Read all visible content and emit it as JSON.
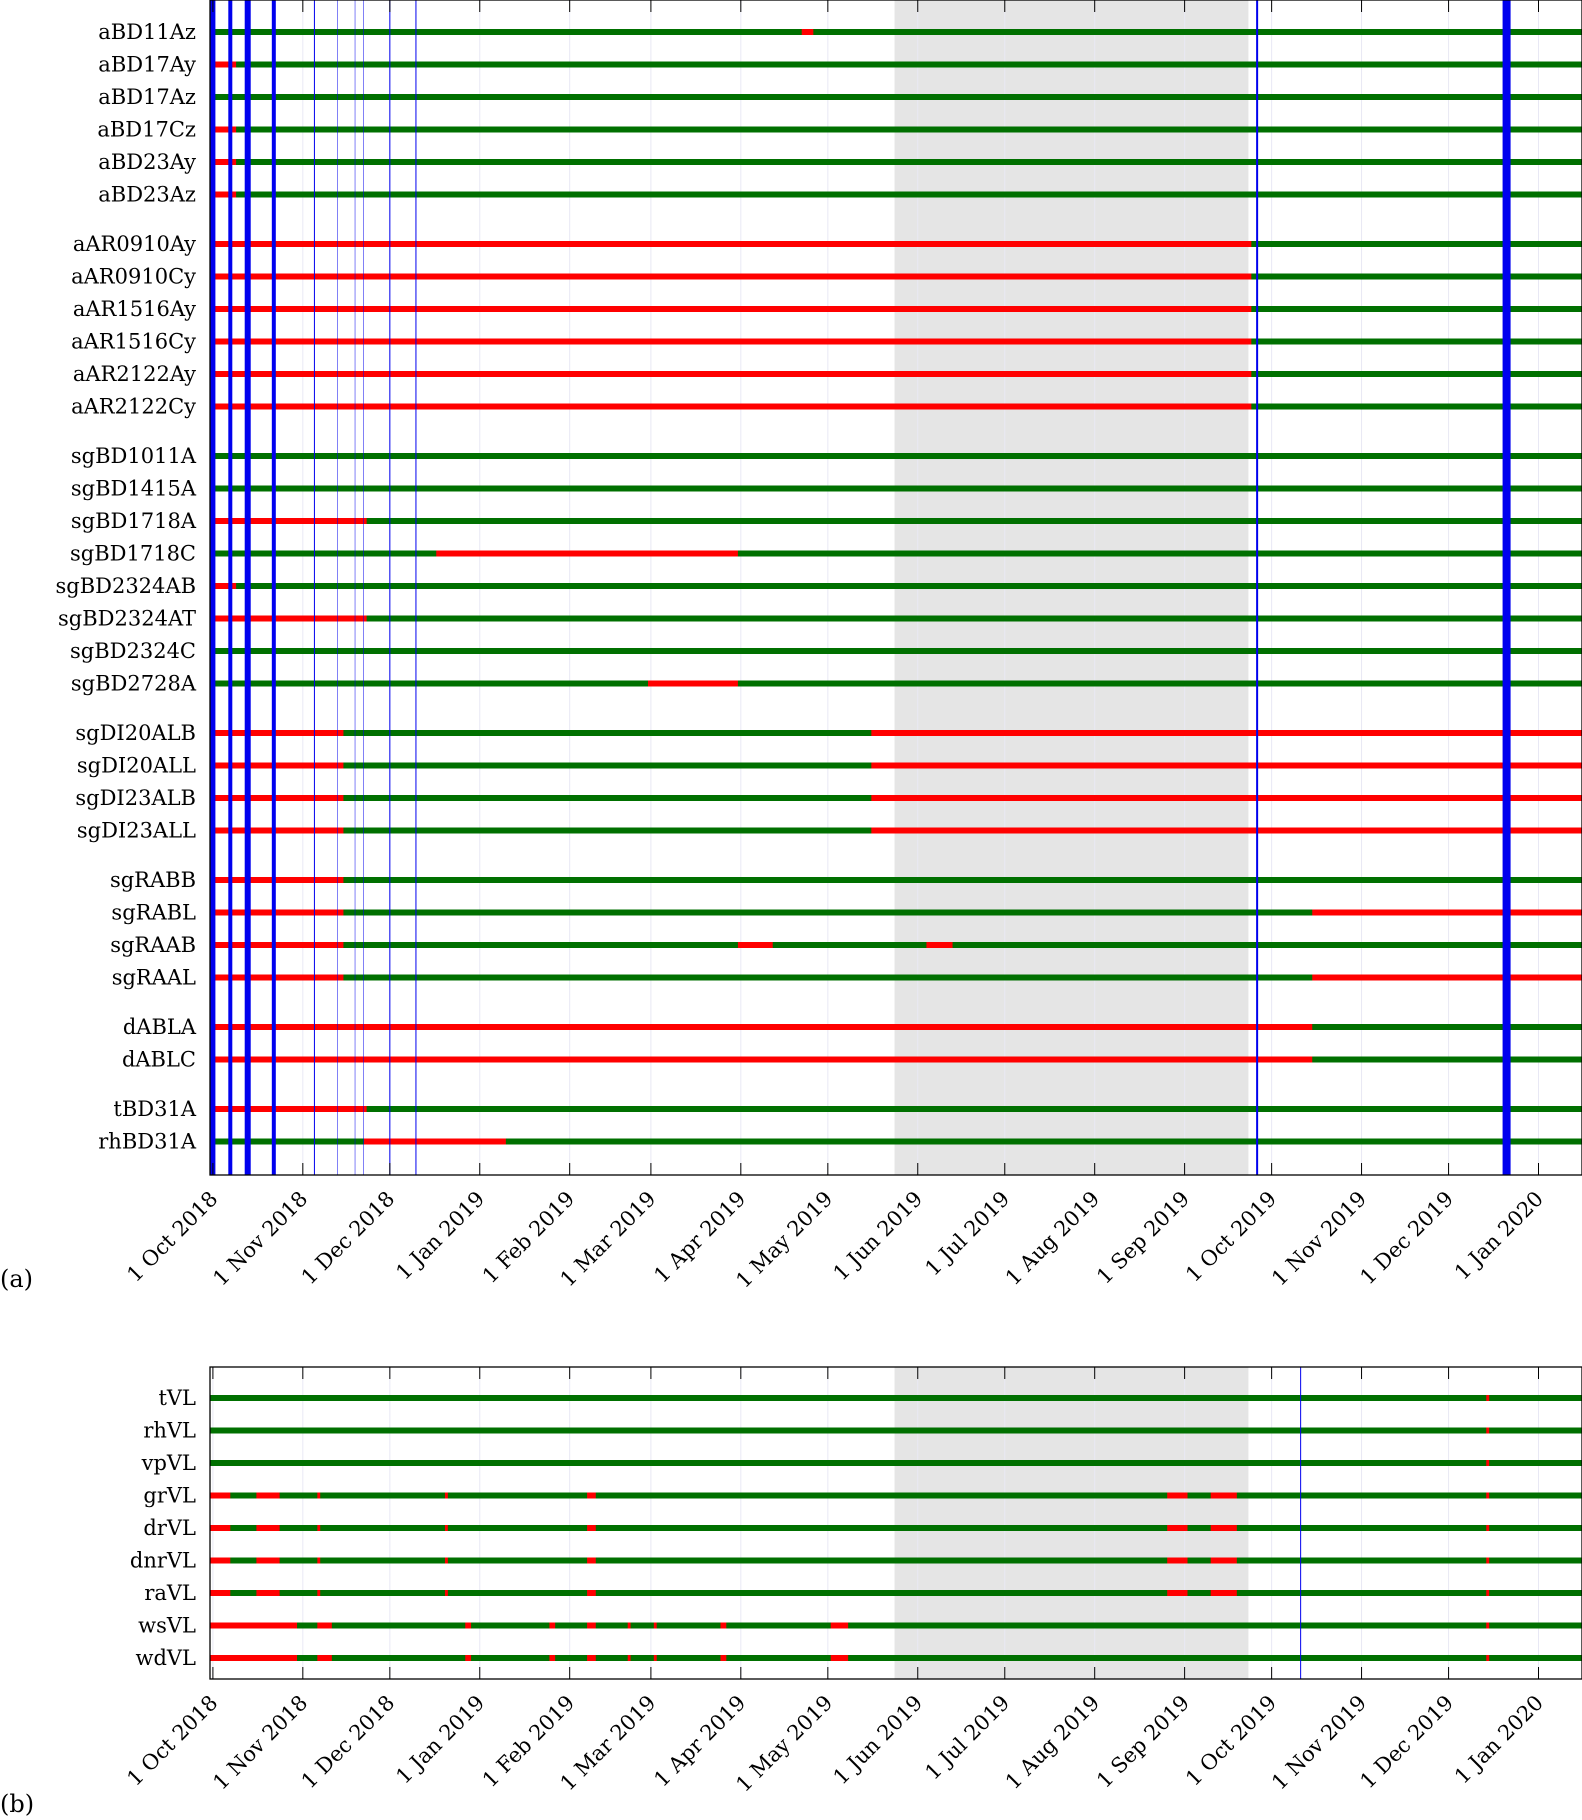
{
  "chart_data": [
    {
      "panel_label": "(a)",
      "type": "status-timeline",
      "xaxis": {
        "start": "2018-09-30",
        "end": "2020-01-16",
        "ticks": [
          "1 Oct 2018",
          "1 Nov 2018",
          "1 Dec 2018",
          "1 Jan 2019",
          "1 Feb 2019",
          "1 Mar 2019",
          "1 Apr 2019",
          "1 May 2019",
          "1 Jun 2019",
          "1 Jul 2019",
          "1 Aug 2019",
          "1 Sep 2019",
          "1 Oct 2019",
          "1 Nov 2019",
          "1 Dec 2019",
          "1 Jan 2020"
        ],
        "tick_dates": [
          "2018-10-01",
          "2018-11-01",
          "2018-12-01",
          "2019-01-01",
          "2019-02-01",
          "2019-03-01",
          "2019-04-01",
          "2019-05-01",
          "2019-06-01",
          "2019-07-01",
          "2019-08-01",
          "2019-09-01",
          "2019-10-01",
          "2019-11-01",
          "2019-12-01",
          "2020-01-01"
        ]
      },
      "shaded_period": {
        "start": "2019-05-24",
        "end": "2019-09-23",
        "color": "#e5e5e5"
      },
      "event_lines": [
        {
          "date": "2018-10-01",
          "weight": 5
        },
        {
          "date": "2018-10-07",
          "weight": 4
        },
        {
          "date": "2018-10-13",
          "weight": 6
        },
        {
          "date": "2018-10-22",
          "weight": 4
        },
        {
          "date": "2018-11-05",
          "weight": 1
        },
        {
          "date": "2018-11-13",
          "weight": 0.5
        },
        {
          "date": "2018-11-19",
          "weight": 0.5
        },
        {
          "date": "2018-11-22",
          "weight": 0.5
        },
        {
          "date": "2018-12-01",
          "weight": 1
        },
        {
          "date": "2018-12-10",
          "weight": 1
        },
        {
          "date": "2019-09-26",
          "weight": 2
        },
        {
          "date": "2019-12-21",
          "weight": 8
        }
      ],
      "colors": {
        "ok": "#007000",
        "fault": "#ff0000",
        "event": "#0000ee",
        "frame": "#000000"
      },
      "groups": [
        {
          "rows": [
            {
              "label": "aBD11Az",
              "fault": [
                [
                  "2019-04-22",
                  "2019-04-26"
                ]
              ]
            },
            {
              "label": "aBD17Ay",
              "fault": [
                [
                  "2018-09-30",
                  "2018-10-09"
                ]
              ]
            },
            {
              "label": "aBD17Az",
              "fault": []
            },
            {
              "label": "aBD17Cz",
              "fault": [
                [
                  "2018-09-30",
                  "2018-10-09"
                ]
              ]
            },
            {
              "label": "aBD23Ay",
              "fault": [
                [
                  "2018-09-30",
                  "2018-10-09"
                ]
              ]
            },
            {
              "label": "aBD23Az",
              "fault": [
                [
                  "2018-09-30",
                  "2018-10-09"
                ]
              ]
            }
          ]
        },
        {
          "rows": [
            {
              "label": "aAR0910Ay",
              "fault": [
                [
                  "2018-09-30",
                  "2019-09-24"
                ]
              ]
            },
            {
              "label": "aAR0910Cy",
              "fault": [
                [
                  "2018-09-30",
                  "2019-09-24"
                ]
              ]
            },
            {
              "label": "aAR1516Ay",
              "fault": [
                [
                  "2018-09-30",
                  "2019-09-24"
                ]
              ]
            },
            {
              "label": "aAR1516Cy",
              "fault": [
                [
                  "2018-09-30",
                  "2019-09-24"
                ]
              ]
            },
            {
              "label": "aAR2122Ay",
              "fault": [
                [
                  "2018-09-30",
                  "2019-09-24"
                ]
              ]
            },
            {
              "label": "aAR2122Cy",
              "fault": [
                [
                  "2018-09-30",
                  "2019-09-24"
                ]
              ]
            }
          ]
        },
        {
          "rows": [
            {
              "label": "sgBD1011A",
              "fault": []
            },
            {
              "label": "sgBD1415A",
              "fault": []
            },
            {
              "label": "sgBD1718A",
              "fault": [
                [
                  "2018-09-30",
                  "2018-11-23"
                ]
              ]
            },
            {
              "label": "sgBD1718C",
              "fault": [
                [
                  "2018-12-17",
                  "2019-03-31"
                ]
              ]
            },
            {
              "label": "sgBD2324AB",
              "fault": [
                [
                  "2018-09-30",
                  "2018-10-09"
                ]
              ]
            },
            {
              "label": "sgBD2324AT",
              "fault": [
                [
                  "2018-09-30",
                  "2018-11-23"
                ]
              ]
            },
            {
              "label": "sgBD2324C",
              "fault": []
            },
            {
              "label": "sgBD2728A",
              "fault": [
                [
                  "2019-02-28",
                  "2019-03-31"
                ]
              ]
            }
          ]
        },
        {
          "rows": [
            {
              "label": "sgDI20ALB",
              "fault": [
                [
                  "2018-09-30",
                  "2018-11-15"
                ],
                [
                  "2019-05-16",
                  "2020-01-16"
                ]
              ]
            },
            {
              "label": "sgDI20ALL",
              "fault": [
                [
                  "2018-09-30",
                  "2018-11-15"
                ],
                [
                  "2019-05-16",
                  "2020-01-16"
                ]
              ]
            },
            {
              "label": "sgDI23ALB",
              "fault": [
                [
                  "2018-09-30",
                  "2018-11-15"
                ],
                [
                  "2019-05-16",
                  "2020-01-16"
                ]
              ]
            },
            {
              "label": "sgDI23ALL",
              "fault": [
                [
                  "2018-09-30",
                  "2018-11-15"
                ],
                [
                  "2019-05-16",
                  "2020-01-16"
                ]
              ]
            }
          ]
        },
        {
          "rows": [
            {
              "label": "sgRABB",
              "fault": [
                [
                  "2018-09-30",
                  "2018-11-15"
                ]
              ]
            },
            {
              "label": "sgRABL",
              "fault": [
                [
                  "2018-09-30",
                  "2018-11-15"
                ],
                [
                  "2019-10-15",
                  "2020-01-16"
                ]
              ]
            },
            {
              "label": "sgRAAB",
              "fault": [
                [
                  "2018-09-30",
                  "2018-11-15"
                ],
                [
                  "2019-03-31",
                  "2019-04-12"
                ],
                [
                  "2019-06-04",
                  "2019-06-13"
                ]
              ]
            },
            {
              "label": "sgRAAL",
              "fault": [
                [
                  "2018-09-30",
                  "2018-11-15"
                ],
                [
                  "2019-10-15",
                  "2020-01-16"
                ]
              ]
            }
          ]
        },
        {
          "rows": [
            {
              "label": "dABLA",
              "fault": [
                [
                  "2018-09-30",
                  "2019-10-15"
                ]
              ]
            },
            {
              "label": "dABLC",
              "fault": [
                [
                  "2018-09-30",
                  "2019-10-15"
                ]
              ]
            }
          ]
        },
        {
          "rows": [
            {
              "label": "tBD31A",
              "fault": [
                [
                  "2018-09-30",
                  "2018-11-23"
                ]
              ]
            },
            {
              "label": "rhBD31A",
              "fault": [
                [
                  "2018-11-22",
                  "2019-01-10"
                ]
              ]
            }
          ]
        }
      ]
    },
    {
      "panel_label": "(b)",
      "type": "status-timeline",
      "xaxis": {
        "start": "2018-09-30",
        "end": "2020-01-16",
        "ticks": [
          "1 Oct 2018",
          "1 Nov 2018",
          "1 Dec 2018",
          "1 Jan 2019",
          "1 Feb 2019",
          "1 Mar 2019",
          "1 Apr 2019",
          "1 May 2019",
          "1 Jun 2019",
          "1 Jul 2019",
          "1 Aug 2019",
          "1 Sep 2019",
          "1 Oct 2019",
          "1 Nov 2019",
          "1 Dec 2019",
          "1 Jan 2020"
        ],
        "tick_dates": [
          "2018-10-01",
          "2018-11-01",
          "2018-12-01",
          "2019-01-01",
          "2019-02-01",
          "2019-03-01",
          "2019-04-01",
          "2019-05-01",
          "2019-06-01",
          "2019-07-01",
          "2019-08-01",
          "2019-09-01",
          "2019-10-01",
          "2019-11-01",
          "2019-12-01",
          "2020-01-01"
        ]
      },
      "shaded_period": {
        "start": "2019-05-24",
        "end": "2019-09-23",
        "color": "#e5e5e5"
      },
      "event_lines": [
        {
          "date": "2019-10-11",
          "weight": 1
        }
      ],
      "colors": {
        "ok": "#007000",
        "fault": "#ff0000",
        "event": "#0000ee",
        "frame": "#000000"
      },
      "groups": [
        {
          "rows": [
            {
              "label": "tVL",
              "fault": [
                [
                  "2019-12-14",
                  "2019-12-15"
                ]
              ]
            },
            {
              "label": "rhVL",
              "fault": [
                [
                  "2019-12-14",
                  "2019-12-15"
                ]
              ]
            },
            {
              "label": "vpVL",
              "fault": [
                [
                  "2019-12-14",
                  "2019-12-15"
                ]
              ]
            },
            {
              "label": "grVL",
              "fault": [
                [
                  "2018-09-30",
                  "2018-10-07"
                ],
                [
                  "2018-10-16",
                  "2018-10-24"
                ],
                [
                  "2018-11-06",
                  "2018-11-07"
                ],
                [
                  "2018-12-20",
                  "2018-12-21"
                ],
                [
                  "2019-02-07",
                  "2019-02-10"
                ],
                [
                  "2019-08-26",
                  "2019-09-02"
                ],
                [
                  "2019-09-10",
                  "2019-09-19"
                ],
                [
                  "2019-12-14",
                  "2019-12-15"
                ]
              ]
            },
            {
              "label": "drVL",
              "fault": [
                [
                  "2018-09-30",
                  "2018-10-07"
                ],
                [
                  "2018-10-16",
                  "2018-10-24"
                ],
                [
                  "2018-11-06",
                  "2018-11-07"
                ],
                [
                  "2018-12-20",
                  "2018-12-21"
                ],
                [
                  "2019-02-07",
                  "2019-02-10"
                ],
                [
                  "2019-08-26",
                  "2019-09-02"
                ],
                [
                  "2019-09-10",
                  "2019-09-19"
                ],
                [
                  "2019-12-14",
                  "2019-12-15"
                ]
              ]
            },
            {
              "label": "dnrVL",
              "fault": [
                [
                  "2018-09-30",
                  "2018-10-07"
                ],
                [
                  "2018-10-16",
                  "2018-10-24"
                ],
                [
                  "2018-11-06",
                  "2018-11-07"
                ],
                [
                  "2018-12-20",
                  "2018-12-21"
                ],
                [
                  "2019-02-07",
                  "2019-02-10"
                ],
                [
                  "2019-08-26",
                  "2019-09-02"
                ],
                [
                  "2019-09-10",
                  "2019-09-19"
                ],
                [
                  "2019-12-14",
                  "2019-12-15"
                ]
              ]
            },
            {
              "label": "raVL",
              "fault": [
                [
                  "2018-09-30",
                  "2018-10-07"
                ],
                [
                  "2018-10-16",
                  "2018-10-24"
                ],
                [
                  "2018-11-06",
                  "2018-11-07"
                ],
                [
                  "2018-12-20",
                  "2018-12-21"
                ],
                [
                  "2019-02-07",
                  "2019-02-10"
                ],
                [
                  "2019-08-26",
                  "2019-09-02"
                ],
                [
                  "2019-09-10",
                  "2019-09-19"
                ],
                [
                  "2019-12-14",
                  "2019-12-15"
                ]
              ]
            },
            {
              "label": "wsVL",
              "fault": [
                [
                  "2018-09-30",
                  "2018-10-30"
                ],
                [
                  "2018-11-06",
                  "2018-11-11"
                ],
                [
                  "2018-12-27",
                  "2018-12-29"
                ],
                [
                  "2019-01-25",
                  "2019-01-27"
                ],
                [
                  "2019-02-07",
                  "2019-02-10"
                ],
                [
                  "2019-02-21",
                  "2019-02-22"
                ],
                [
                  "2019-03-02",
                  "2019-03-03"
                ],
                [
                  "2019-03-25",
                  "2019-03-27"
                ],
                [
                  "2019-05-02",
                  "2019-05-08"
                ],
                [
                  "2019-12-14",
                  "2019-12-15"
                ]
              ]
            },
            {
              "label": "wdVL",
              "fault": [
                [
                  "2018-09-30",
                  "2018-10-30"
                ],
                [
                  "2018-11-06",
                  "2018-11-11"
                ],
                [
                  "2018-12-27",
                  "2018-12-29"
                ],
                [
                  "2019-01-25",
                  "2019-01-27"
                ],
                [
                  "2019-02-07",
                  "2019-02-10"
                ],
                [
                  "2019-02-21",
                  "2019-02-22"
                ],
                [
                  "2019-03-02",
                  "2019-03-03"
                ],
                [
                  "2019-03-25",
                  "2019-03-27"
                ],
                [
                  "2019-05-02",
                  "2019-05-08"
                ],
                [
                  "2019-12-14",
                  "2019-12-15"
                ]
              ]
            }
          ]
        }
      ]
    }
  ]
}
